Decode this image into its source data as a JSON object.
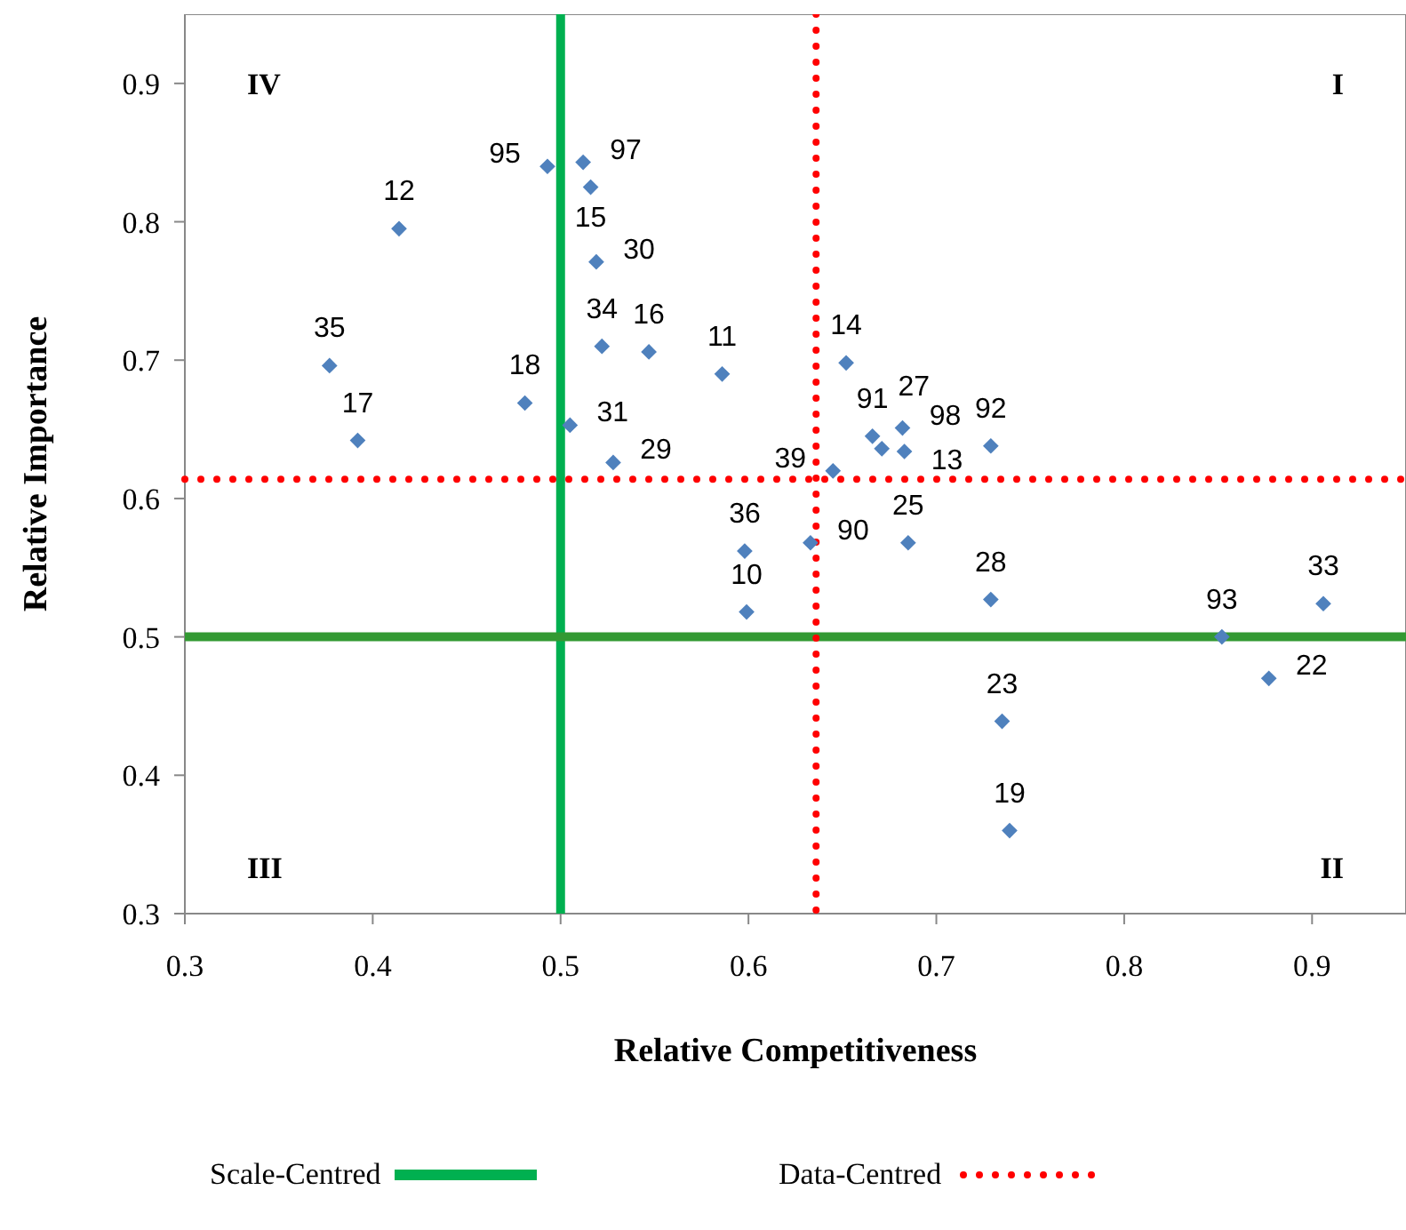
{
  "chart_data": {
    "type": "scatter",
    "xlabel": "Relative Competitiveness",
    "ylabel": "Relative Importance",
    "xlim": [
      0.3,
      0.95
    ],
    "ylim": [
      0.3,
      0.95
    ],
    "xticks": [
      0.3,
      0.4,
      0.5,
      0.6,
      0.7,
      0.8,
      0.9
    ],
    "yticks": [
      0.3,
      0.4,
      0.5,
      0.6,
      0.7,
      0.8,
      0.9
    ],
    "grid": false,
    "legend": "bottom",
    "marker": "diamond",
    "series": [
      {
        "color": "#4f81bd",
        "x": [
          0.493,
          0.512,
          0.516,
          0.414,
          0.519,
          0.522,
          0.547,
          0.586,
          0.377,
          0.481,
          0.392,
          0.505,
          0.528,
          0.598,
          0.599,
          0.652,
          0.666,
          0.671,
          0.682,
          0.683,
          0.729,
          0.645,
          0.633,
          0.685,
          0.729,
          0.906,
          0.852,
          0.877,
          0.735,
          0.739
        ],
        "values": [
          0.84,
          0.843,
          0.825,
          0.795,
          0.771,
          0.71,
          0.706,
          0.69,
          0.696,
          0.669,
          0.642,
          0.653,
          0.626,
          0.562,
          0.518,
          0.698,
          0.645,
          0.636,
          0.651,
          0.634,
          0.638,
          0.62,
          0.568,
          0.568,
          0.527,
          0.524,
          0.5,
          0.47,
          0.439,
          0.36
        ]
      }
    ],
    "ref_lines": [
      {
        "axis": "x",
        "value": 0.5,
        "label": "Scale-Centred",
        "color": "#00b050",
        "line_style": "solid"
      },
      {
        "axis": "y",
        "value": 0.5,
        "color": "#339933",
        "line_style": "solid"
      },
      {
        "axis": "x",
        "value": 0.636,
        "label": "Data-Centred",
        "color": "#ff0000",
        "line_style": "dotted"
      },
      {
        "axis": "y",
        "value": 0.614,
        "color": "#ff0000",
        "line_style": "dotted"
      }
    ],
    "annotations": [
      "IV",
      "I",
      "III",
      "II",
      {
        "text": "95",
        "x": 0.493,
        "y": 0.84
      },
      {
        "text": "97",
        "x": 0.512,
        "y": 0.843
      },
      {
        "text": "15",
        "x": 0.516,
        "y": 0.825
      },
      {
        "text": "12",
        "x": 0.414,
        "y": 0.795
      },
      {
        "text": "30",
        "x": 0.519,
        "y": 0.771
      },
      {
        "text": "34",
        "x": 0.522,
        "y": 0.71
      },
      {
        "text": "16",
        "x": 0.547,
        "y": 0.706
      },
      {
        "text": "11",
        "x": 0.586,
        "y": 0.69
      },
      {
        "text": "35",
        "x": 0.377,
        "y": 0.696
      },
      {
        "text": "18",
        "x": 0.481,
        "y": 0.669
      },
      {
        "text": "17",
        "x": 0.392,
        "y": 0.642
      },
      {
        "text": "31",
        "x": 0.505,
        "y": 0.653
      },
      {
        "text": "29",
        "x": 0.528,
        "y": 0.626
      },
      {
        "text": "36",
        "x": 0.598,
        "y": 0.562
      },
      {
        "text": "10",
        "x": 0.599,
        "y": 0.518
      },
      {
        "text": "14",
        "x": 0.652,
        "y": 0.698
      },
      {
        "text": "91",
        "x": 0.666,
        "y": 0.645
      },
      {
        "text": "27",
        "x": 0.671,
        "y": 0.636
      },
      {
        "text": "98",
        "x": 0.682,
        "y": 0.651
      },
      {
        "text": "13",
        "x": 0.683,
        "y": 0.634
      },
      {
        "text": "92",
        "x": 0.729,
        "y": 0.638
      },
      {
        "text": "39",
        "x": 0.645,
        "y": 0.62
      },
      {
        "text": "90",
        "x": 0.633,
        "y": 0.568
      },
      {
        "text": "25",
        "x": 0.685,
        "y": 0.568
      },
      {
        "text": "28",
        "x": 0.729,
        "y": 0.527
      },
      {
        "text": "33",
        "x": 0.906,
        "y": 0.524
      },
      {
        "text": "93",
        "x": 0.852,
        "y": 0.5
      },
      {
        "text": "22",
        "x": 0.877,
        "y": 0.47
      },
      {
        "text": "23",
        "x": 0.735,
        "y": 0.439
      },
      {
        "text": "19",
        "x": 0.739,
        "y": 0.36
      }
    ]
  }
}
